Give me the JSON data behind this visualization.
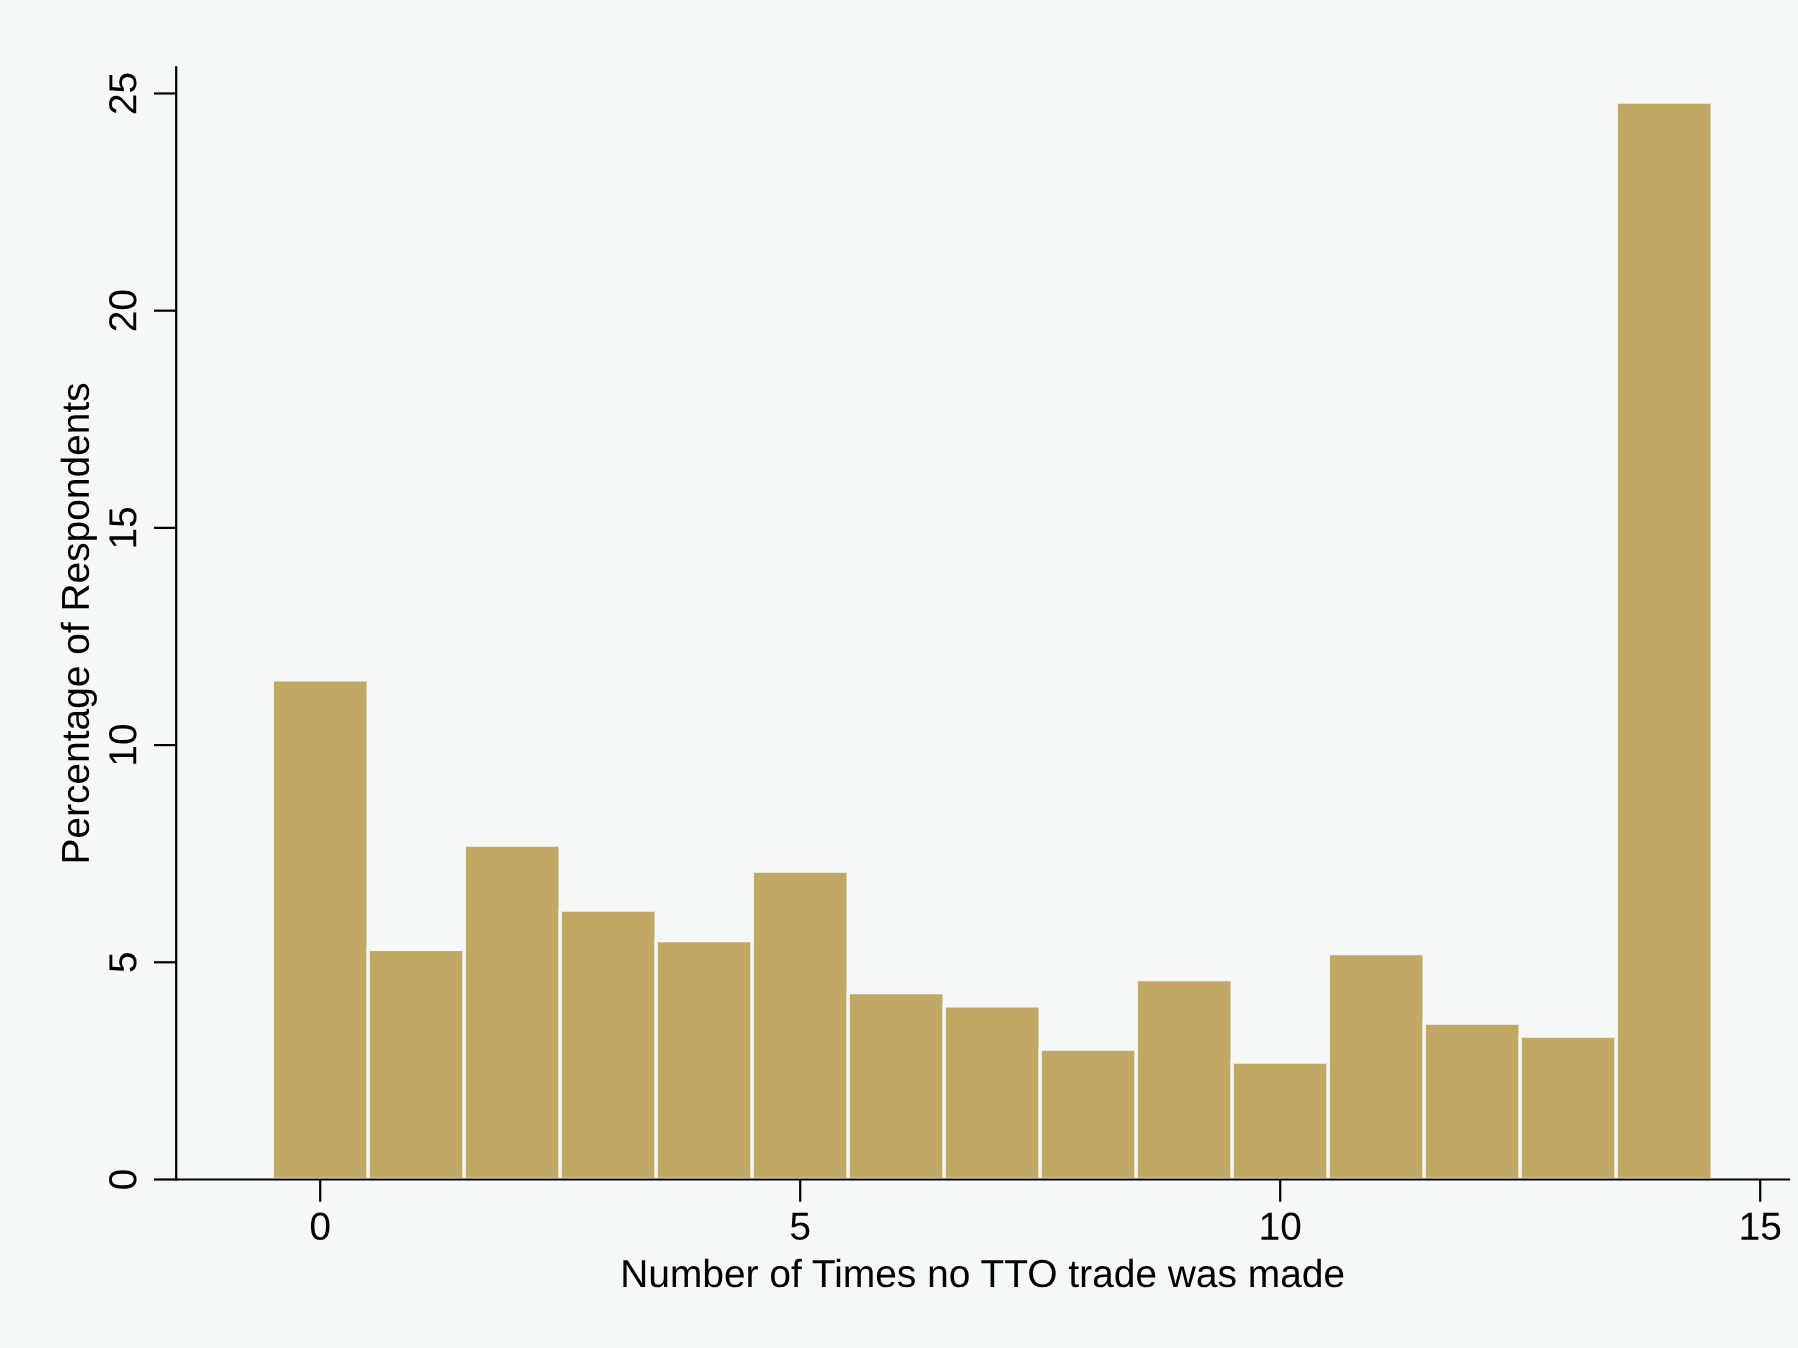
{
  "chart_data": {
    "type": "histogram",
    "xlabel": "Number of Times no TTO trade was made",
    "ylabel": "Percentage of Respondents",
    "bins": [
      -0.5,
      0.5,
      1.5,
      2.5,
      3.5,
      4.5,
      5.5,
      6.5,
      7.5,
      8.5,
      9.5,
      10.5,
      11.5,
      12.5,
      13.5,
      14.5
    ],
    "values": [
      11.5,
      5.3,
      7.7,
      6.2,
      5.5,
      7.1,
      4.3,
      4.0,
      3.0,
      4.6,
      2.7,
      5.2,
      3.6,
      3.3,
      24.8
    ],
    "color": "#c2a865",
    "xlim": [
      -1.5,
      15.3
    ],
    "ylim": [
      0,
      25.6
    ],
    "xticks": [
      0,
      5,
      10,
      15
    ],
    "yticks": [
      0,
      5,
      10,
      15,
      20,
      25
    ],
    "grid": false
  }
}
